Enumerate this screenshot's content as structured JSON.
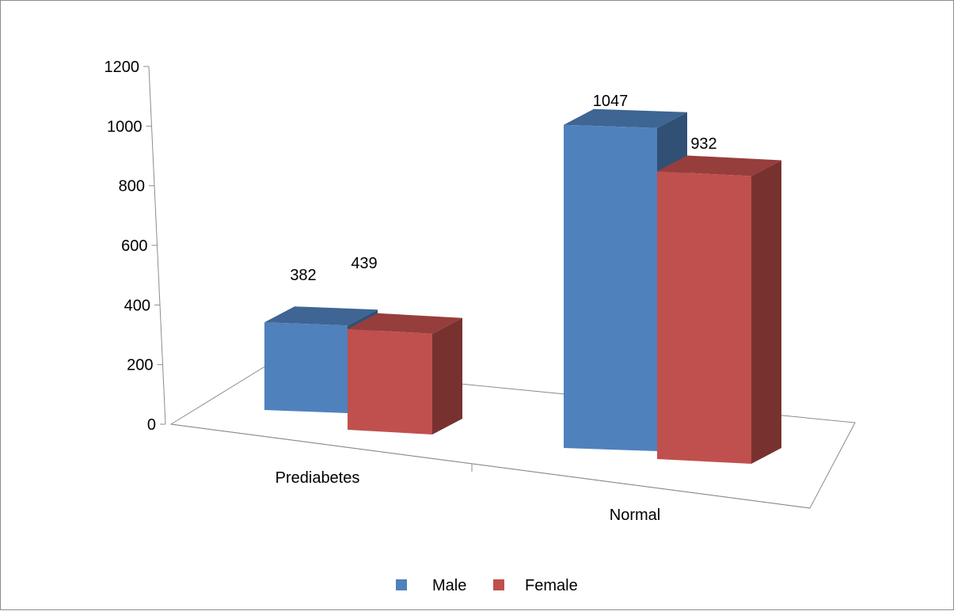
{
  "chart_data": {
    "type": "bar",
    "categories": [
      "Prediabetes",
      "Normal"
    ],
    "series": [
      {
        "name": "Male",
        "values": [
          382,
          1047
        ],
        "color": "#4f81bd"
      },
      {
        "name": "Female",
        "values": [
          439,
          932
        ],
        "color": "#c0504d"
      }
    ],
    "yticks": [
      "0",
      "200",
      "400",
      "600",
      "800",
      "1000",
      "1200"
    ],
    "ylim": [
      0,
      1200
    ],
    "legend_position": "bottom",
    "three_d": true,
    "title": "",
    "xlabel": "",
    "ylabel": ""
  }
}
